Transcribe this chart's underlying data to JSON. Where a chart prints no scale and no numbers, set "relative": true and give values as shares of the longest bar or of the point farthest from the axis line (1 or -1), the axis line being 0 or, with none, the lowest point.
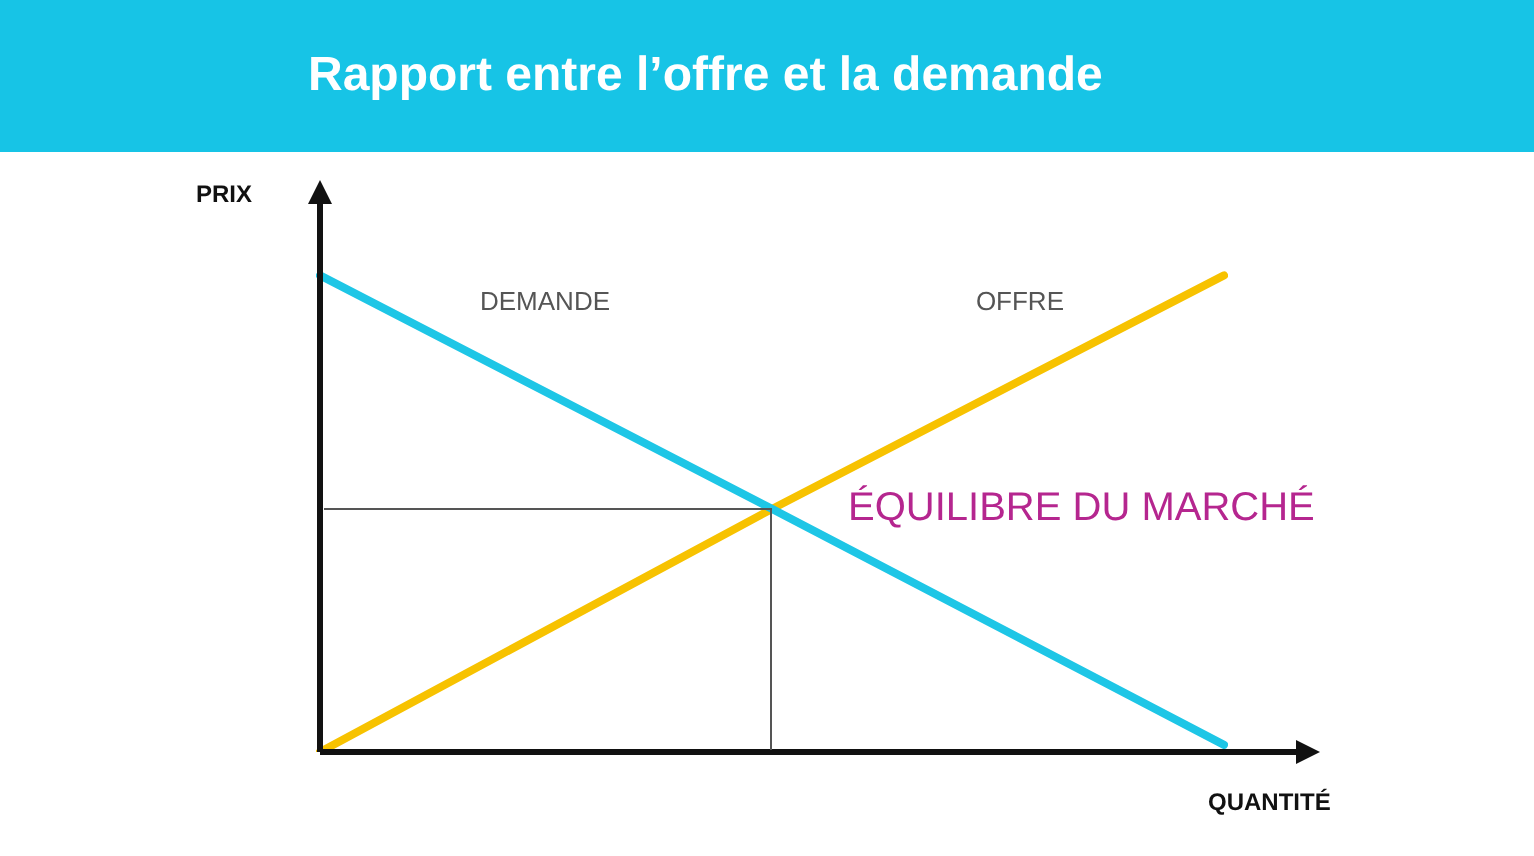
{
  "chart_data": {
    "type": "line",
    "title": "Rapport entre l’offre et la demande",
    "xlabel": "QUANTITÉ",
    "ylabel": "PRIX",
    "relative": true,
    "categories": [
      null,
      null,
      null
    ],
    "legend": false,
    "marker": "none",
    "series": [
      {
        "name": "DEMANDE",
        "color": "#1ec6e6",
        "values": [
          1,
          0.51,
          0.015
        ]
      },
      {
        "name": "OFFRE",
        "color": "#f7c200",
        "values": [
          0,
          0.51,
          1
        ]
      }
    ],
    "annotations": [
      "ÉQUILIBRE DU MARCHÉ"
    ]
  }
}
